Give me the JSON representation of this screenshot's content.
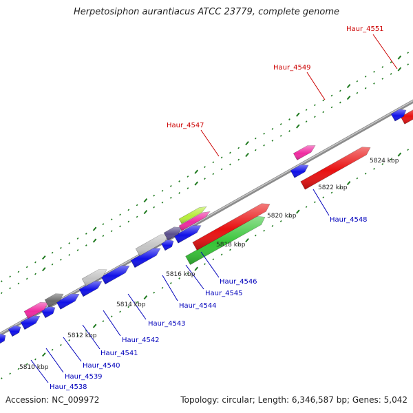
{
  "title": "Herpetosiphon aurantiacus ATCC 23779, complete genome",
  "footer": {
    "accession": "Accession: NC_009972",
    "summary": "Topology: circular; Length: 6,346,587 bp; Genes: 5,042"
  },
  "colors": {
    "backbone": "#8c8c8c",
    "tick": "#1f7a1f",
    "forward_label": "#cc0000",
    "reverse_label": "#0000bb",
    "blue_gene": "#1010e8",
    "red_gene": "#e81010",
    "green_gene": "#35c435",
    "magenta_gene": "#f02aa0",
    "gray_gene": "#c4c4c4",
    "darkgray_gene": "#6a6a6a",
    "purple_gene": "#5a4e8c",
    "lime_gene": "#b6ee3a"
  },
  "tick_labels": [
    "5810 kbp",
    "5812 kbp",
    "5814 kbp",
    "5816 kbp",
    "5818 kbp",
    "5820 kbp",
    "5822 kbp",
    "5824 kbp"
  ],
  "gene_labels": {
    "forward": [
      "Haur_4551",
      "Haur_4549",
      "Haur_4547"
    ],
    "reverse": [
      "Haur_4546",
      "Haur_4545",
      "Haur_4544",
      "Haur_4543",
      "Haur_4542",
      "Haur_4541",
      "Haur_4540",
      "Haur_4539",
      "Haur_4538",
      "Haur_4548"
    ]
  }
}
